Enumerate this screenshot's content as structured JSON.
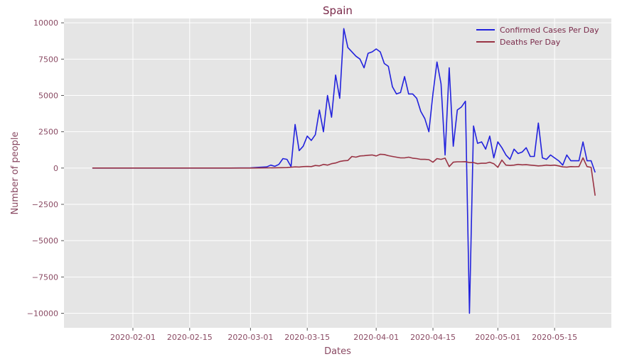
{
  "chart_data": {
    "type": "line",
    "title": "Spain",
    "xlabel": "Dates",
    "ylabel": "Number of people",
    "x_ticks": [
      "2020-02-01",
      "2020-02-15",
      "2020-03-01",
      "2020-03-15",
      "2020-04-01",
      "2020-04-15",
      "2020-05-01",
      "2020-05-15"
    ],
    "y_ticks": [
      10000,
      7500,
      5000,
      2500,
      0,
      -2500,
      -5000,
      -7500,
      -10000
    ],
    "y_tick_labels": [
      "10000",
      "7500",
      "5000",
      "2500",
      "0",
      "−2500",
      "−5000",
      "−7500",
      "−10000"
    ],
    "xlim": [
      "2020-01-15",
      "2020-05-29"
    ],
    "ylim": [
      -11000,
      10300
    ],
    "grid": true,
    "legend_position": "top-right",
    "series": [
      {
        "name": "Confirmed Cases Per Day",
        "color": "#2222dd",
        "points": [
          [
            "2020-01-22",
            0
          ],
          [
            "2020-02-01",
            0
          ],
          [
            "2020-02-15",
            0
          ],
          [
            "2020-02-25",
            0
          ],
          [
            "2020-03-01",
            10
          ],
          [
            "2020-03-03",
            50
          ],
          [
            "2020-03-05",
            80
          ],
          [
            "2020-03-06",
            200
          ],
          [
            "2020-03-07",
            120
          ],
          [
            "2020-03-08",
            250
          ],
          [
            "2020-03-09",
            650
          ],
          [
            "2020-03-10",
            600
          ],
          [
            "2020-03-11",
            100
          ],
          [
            "2020-03-12",
            3000
          ],
          [
            "2020-03-13",
            1200
          ],
          [
            "2020-03-14",
            1500
          ],
          [
            "2020-03-15",
            2200
          ],
          [
            "2020-03-16",
            1900
          ],
          [
            "2020-03-17",
            2300
          ],
          [
            "2020-03-18",
            4000
          ],
          [
            "2020-03-19",
            2500
          ],
          [
            "2020-03-20",
            5000
          ],
          [
            "2020-03-21",
            3500
          ],
          [
            "2020-03-22",
            6400
          ],
          [
            "2020-03-23",
            4800
          ],
          [
            "2020-03-24",
            9600
          ],
          [
            "2020-03-25",
            8300
          ],
          [
            "2020-03-26",
            8000
          ],
          [
            "2020-03-27",
            7700
          ],
          [
            "2020-03-28",
            7500
          ],
          [
            "2020-03-29",
            6900
          ],
          [
            "2020-03-30",
            7900
          ],
          [
            "2020-03-31",
            8000
          ],
          [
            "2020-04-01",
            8200
          ],
          [
            "2020-04-02",
            8000
          ],
          [
            "2020-04-03",
            7200
          ],
          [
            "2020-04-04",
            7000
          ],
          [
            "2020-04-05",
            5600
          ],
          [
            "2020-04-06",
            5100
          ],
          [
            "2020-04-07",
            5200
          ],
          [
            "2020-04-08",
            6300
          ],
          [
            "2020-04-09",
            5100
          ],
          [
            "2020-04-10",
            5100
          ],
          [
            "2020-04-11",
            4800
          ],
          [
            "2020-04-12",
            3900
          ],
          [
            "2020-04-13",
            3400
          ],
          [
            "2020-04-14",
            2500
          ],
          [
            "2020-04-15",
            5100
          ],
          [
            "2020-04-16",
            7300
          ],
          [
            "2020-04-17",
            5800
          ],
          [
            "2020-04-18",
            900
          ],
          [
            "2020-04-19",
            6900
          ],
          [
            "2020-04-20",
            1500
          ],
          [
            "2020-04-21",
            4000
          ],
          [
            "2020-04-22",
            4200
          ],
          [
            "2020-04-23",
            4600
          ],
          [
            "2020-04-24",
            -10000
          ],
          [
            "2020-04-25",
            2900
          ],
          [
            "2020-04-26",
            1700
          ],
          [
            "2020-04-27",
            1800
          ],
          [
            "2020-04-28",
            1300
          ],
          [
            "2020-04-29",
            2200
          ],
          [
            "2020-04-30",
            700
          ],
          [
            "2020-05-01",
            1800
          ],
          [
            "2020-05-02",
            1400
          ],
          [
            "2020-05-03",
            900
          ],
          [
            "2020-05-04",
            600
          ],
          [
            "2020-05-05",
            1300
          ],
          [
            "2020-05-06",
            1000
          ],
          [
            "2020-05-07",
            1100
          ],
          [
            "2020-05-08",
            1400
          ],
          [
            "2020-05-09",
            800
          ],
          [
            "2020-05-10",
            800
          ],
          [
            "2020-05-11",
            3100
          ],
          [
            "2020-05-12",
            700
          ],
          [
            "2020-05-13",
            600
          ],
          [
            "2020-05-14",
            900
          ],
          [
            "2020-05-15",
            700
          ],
          [
            "2020-05-16",
            500
          ],
          [
            "2020-05-17",
            200
          ],
          [
            "2020-05-18",
            900
          ],
          [
            "2020-05-19",
            500
          ],
          [
            "2020-05-20",
            500
          ],
          [
            "2020-05-21",
            500
          ],
          [
            "2020-05-22",
            1800
          ],
          [
            "2020-05-23",
            500
          ],
          [
            "2020-05-24",
            500
          ],
          [
            "2020-05-25",
            -300
          ]
        ]
      },
      {
        "name": "Deaths Per Day",
        "color": "#993344",
        "points": [
          [
            "2020-01-22",
            0
          ],
          [
            "2020-02-15",
            0
          ],
          [
            "2020-03-01",
            0
          ],
          [
            "2020-03-05",
            10
          ],
          [
            "2020-03-10",
            30
          ],
          [
            "2020-03-12",
            80
          ],
          [
            "2020-03-13",
            70
          ],
          [
            "2020-03-14",
            100
          ],
          [
            "2020-03-15",
            110
          ],
          [
            "2020-03-16",
            100
          ],
          [
            "2020-03-17",
            180
          ],
          [
            "2020-03-18",
            150
          ],
          [
            "2020-03-19",
            250
          ],
          [
            "2020-03-20",
            200
          ],
          [
            "2020-03-21",
            300
          ],
          [
            "2020-03-22",
            350
          ],
          [
            "2020-03-23",
            450
          ],
          [
            "2020-03-24",
            500
          ],
          [
            "2020-03-25",
            520
          ],
          [
            "2020-03-26",
            800
          ],
          [
            "2020-03-27",
            750
          ],
          [
            "2020-03-28",
            830
          ],
          [
            "2020-03-29",
            850
          ],
          [
            "2020-03-30",
            880
          ],
          [
            "2020-03-31",
            900
          ],
          [
            "2020-04-01",
            830
          ],
          [
            "2020-04-02",
            950
          ],
          [
            "2020-04-03",
            930
          ],
          [
            "2020-04-04",
            850
          ],
          [
            "2020-04-05",
            800
          ],
          [
            "2020-04-06",
            750
          ],
          [
            "2020-04-07",
            700
          ],
          [
            "2020-04-08",
            700
          ],
          [
            "2020-04-09",
            750
          ],
          [
            "2020-04-10",
            680
          ],
          [
            "2020-04-11",
            650
          ],
          [
            "2020-04-12",
            600
          ],
          [
            "2020-04-13",
            600
          ],
          [
            "2020-04-14",
            580
          ],
          [
            "2020-04-15",
            400
          ],
          [
            "2020-04-16",
            650
          ],
          [
            "2020-04-17",
            600
          ],
          [
            "2020-04-18",
            680
          ],
          [
            "2020-04-19",
            100
          ],
          [
            "2020-04-20",
            400
          ],
          [
            "2020-04-21",
            430
          ],
          [
            "2020-04-22",
            430
          ],
          [
            "2020-04-23",
            440
          ],
          [
            "2020-04-24",
            380
          ],
          [
            "2020-04-25",
            380
          ],
          [
            "2020-04-26",
            300
          ],
          [
            "2020-04-27",
            330
          ],
          [
            "2020-04-28",
            330
          ],
          [
            "2020-04-29",
            400
          ],
          [
            "2020-04-30",
            300
          ],
          [
            "2020-05-01",
            50
          ],
          [
            "2020-05-02",
            550
          ],
          [
            "2020-05-03",
            200
          ],
          [
            "2020-05-04",
            180
          ],
          [
            "2020-05-05",
            200
          ],
          [
            "2020-05-06",
            250
          ],
          [
            "2020-05-07",
            220
          ],
          [
            "2020-05-08",
            230
          ],
          [
            "2020-05-09",
            200
          ],
          [
            "2020-05-10",
            180
          ],
          [
            "2020-05-11",
            150
          ],
          [
            "2020-05-12",
            170
          ],
          [
            "2020-05-13",
            200
          ],
          [
            "2020-05-14",
            180
          ],
          [
            "2020-05-15",
            200
          ],
          [
            "2020-05-16",
            150
          ],
          [
            "2020-05-17",
            80
          ],
          [
            "2020-05-18",
            60
          ],
          [
            "2020-05-19",
            100
          ],
          [
            "2020-05-20",
            90
          ],
          [
            "2020-05-21",
            100
          ],
          [
            "2020-05-22",
            700
          ],
          [
            "2020-05-23",
            100
          ],
          [
            "2020-05-24",
            50
          ],
          [
            "2020-05-25",
            -1900
          ]
        ]
      }
    ]
  }
}
